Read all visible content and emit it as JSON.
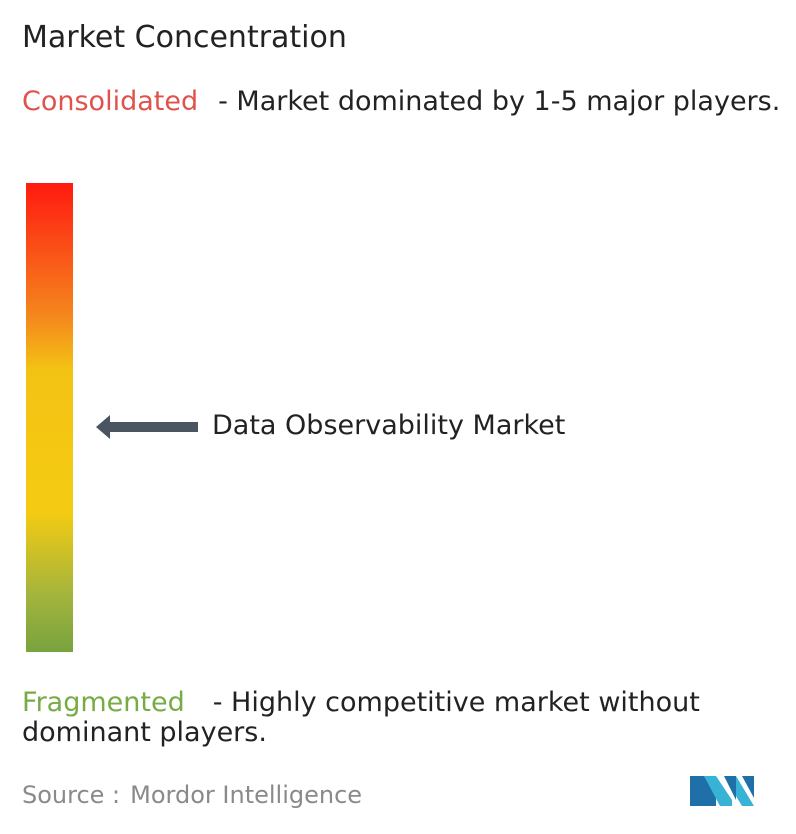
{
  "title": "Market Concentration",
  "consolidated": {
    "label": "Consolidated",
    "description": "- Market dominated by 1-5 major players."
  },
  "marker": {
    "label": "Data Observability Market"
  },
  "fragmented": {
    "label": "Fragmented",
    "description": "- Highly competitive market without dominant players."
  },
  "source": {
    "label": "Source :",
    "name": "Mordor Intelligence"
  }
}
